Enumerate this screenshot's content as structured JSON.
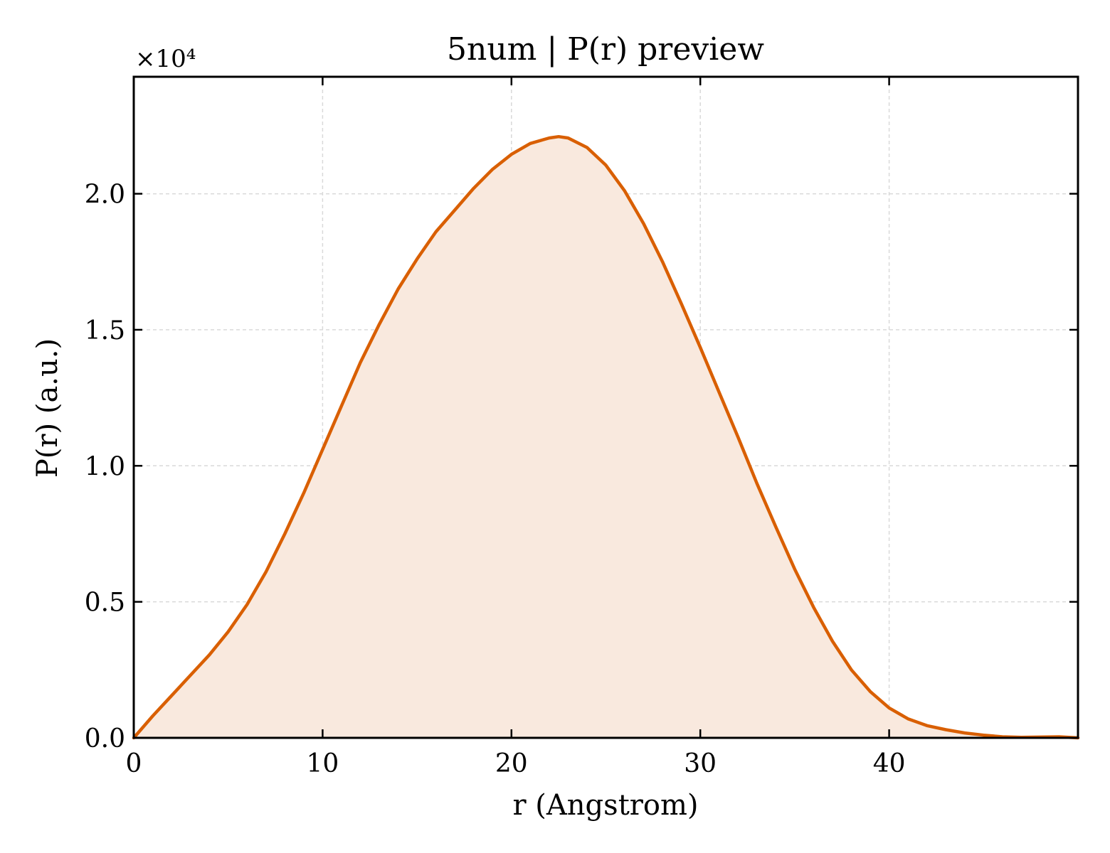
{
  "chart_data": {
    "type": "area",
    "title": "5num | P(r) preview",
    "xlabel": "r (Angstrom)",
    "ylabel": "P(r) (a.u.)",
    "y_multiplier": "×10⁴",
    "xlim": [
      0,
      50
    ],
    "ylim": [
      0,
      2.43
    ],
    "x_ticks": [
      "0",
      "10",
      "20",
      "30",
      "40"
    ],
    "x_tick_values": [
      0,
      10,
      20,
      30,
      40
    ],
    "y_ticks": [
      "0.0",
      "0.5",
      "1.0",
      "1.5",
      "2.0"
    ],
    "y_tick_values": [
      0,
      0.5,
      1.0,
      1.5,
      2.0
    ],
    "grid": true,
    "colors": {
      "line": "#d95f02",
      "fill": "#f9e9de",
      "grid": "#d9d9d9"
    },
    "series": [
      {
        "x": [
          0,
          1,
          2,
          3,
          4,
          5,
          6,
          7,
          8,
          9,
          10,
          11,
          12,
          13,
          14,
          15,
          16,
          17,
          18,
          19,
          20,
          21,
          22,
          22.5,
          23,
          24,
          25,
          26,
          27,
          28,
          29,
          30,
          31,
          32,
          33,
          34,
          35,
          36,
          37,
          38,
          39,
          40,
          41,
          42,
          43,
          44,
          45,
          46,
          47,
          48,
          49,
          50
        ],
        "y": [
          0.0,
          0.08,
          0.155,
          0.23,
          0.305,
          0.39,
          0.49,
          0.61,
          0.75,
          0.9,
          1.06,
          1.22,
          1.38,
          1.52,
          1.65,
          1.76,
          1.86,
          1.94,
          2.02,
          2.09,
          2.145,
          2.185,
          2.205,
          2.21,
          2.205,
          2.17,
          2.105,
          2.01,
          1.89,
          1.75,
          1.595,
          1.435,
          1.27,
          1.105,
          0.935,
          0.775,
          0.62,
          0.48,
          0.355,
          0.25,
          0.17,
          0.11,
          0.07,
          0.045,
          0.03,
          0.018,
          0.01,
          0.004,
          0.002,
          0.003,
          0.004,
          0.0
        ]
      }
    ]
  }
}
